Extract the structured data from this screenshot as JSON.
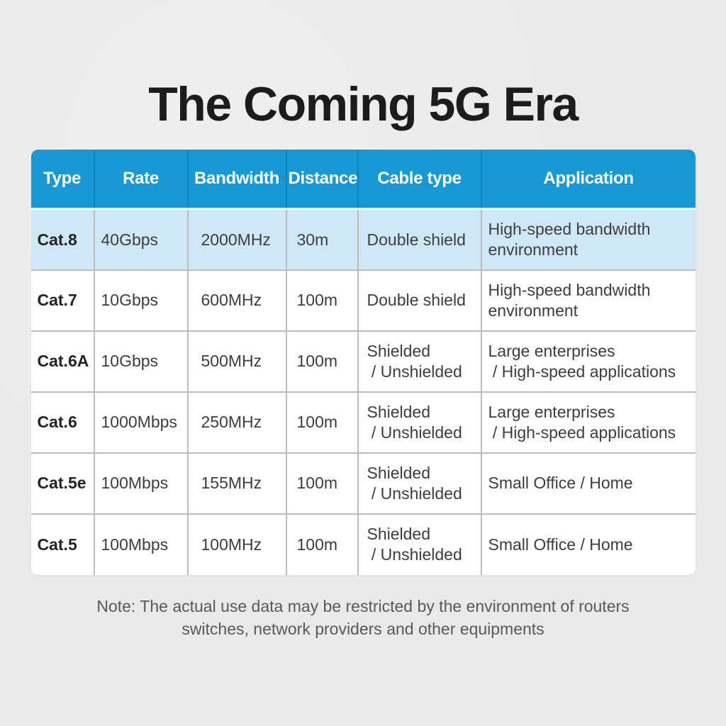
{
  "title": "The Coming 5G Era",
  "note": "Note: The actual use data may be restricted by the environment of routers\nswitches, network providers and other equipments",
  "colors": {
    "page_background": "#e9e9e7",
    "header_blue": "#1899d6",
    "header_divider_blue": "#0e85c1",
    "highlight_row_blue": "#cfe8f7",
    "body_divider_gray": "#bcbcbc",
    "title_text": "#1c1c1c",
    "body_text": "#3d3d3d",
    "note_text": "#595959"
  },
  "table": {
    "columns": [
      "Type",
      "Rate",
      "Bandwidth",
      "Distance",
      "Cable type",
      "Application"
    ],
    "rows": [
      {
        "type": "Cat.8",
        "rate": "40Gbps",
        "bandwidth": "2000MHz",
        "distance": "30m",
        "cable_type": "Double shield",
        "application": "High-speed bandwidth\nenvironment"
      },
      {
        "type": "Cat.7",
        "rate": "10Gbps",
        "bandwidth": "600MHz",
        "distance": "100m",
        "cable_type": "Double shield",
        "application": "High-speed bandwidth\nenvironment"
      },
      {
        "type": "Cat.6A",
        "rate": "10Gbps",
        "bandwidth": "500MHz",
        "distance": "100m",
        "cable_type": "Shielded\n / Unshielded",
        "application": "Large enterprises\n / High-speed applications"
      },
      {
        "type": "Cat.6",
        "rate": "1000Mbps",
        "bandwidth": "250MHz",
        "distance": "100m",
        "cable_type": "Shielded\n / Unshielded",
        "application": "Large enterprises\n / High-speed applications"
      },
      {
        "type": "Cat.5e",
        "rate": "100Mbps",
        "bandwidth": "155MHz",
        "distance": "100m",
        "cable_type": "Shielded\n / Unshielded",
        "application": "Small Office / Home"
      },
      {
        "type": "Cat.5",
        "rate": "100Mbps",
        "bandwidth": "100MHz",
        "distance": "100m",
        "cable_type": "Shielded\n / Unshielded",
        "application": "Small Office / Home"
      }
    ],
    "highlighted_row": "Cat.8"
  },
  "chart_data": {
    "type": "table",
    "title": "The Coming 5G Era",
    "columns": [
      "Type",
      "Rate",
      "Bandwidth",
      "Distance",
      "Cable type",
      "Application"
    ],
    "rows": [
      [
        "Cat.8",
        "40Gbps",
        "2000MHz",
        "30m",
        "Double shield",
        "High-speed bandwidth environment"
      ],
      [
        "Cat.7",
        "10Gbps",
        "600MHz",
        "100m",
        "Double shield",
        "High-speed bandwidth environment"
      ],
      [
        "Cat.6A",
        "10Gbps",
        "500MHz",
        "100m",
        "Shielded / Unshielded",
        "Large enterprises / High-speed applications"
      ],
      [
        "Cat.6",
        "1000Mbps",
        "250MHz",
        "100m",
        "Shielded / Unshielded",
        "Large enterprises / High-speed applications"
      ],
      [
        "Cat.5e",
        "100Mbps",
        "155MHz",
        "100m",
        "Shielded / Unshielded",
        "Small Office / Home"
      ],
      [
        "Cat.5",
        "100Mbps",
        "100MHz",
        "100m",
        "Shielded / Unshielded",
        "Small Office / Home"
      ]
    ],
    "highlighted_row": "Cat.8",
    "note": "Note: The actual use data may be restricted by the environment of routers switches, network providers and other equipments",
    "layout": {
      "header_background": "#1899d6",
      "highlight_row_background": "#cfe8f7",
      "grid": true
    }
  }
}
